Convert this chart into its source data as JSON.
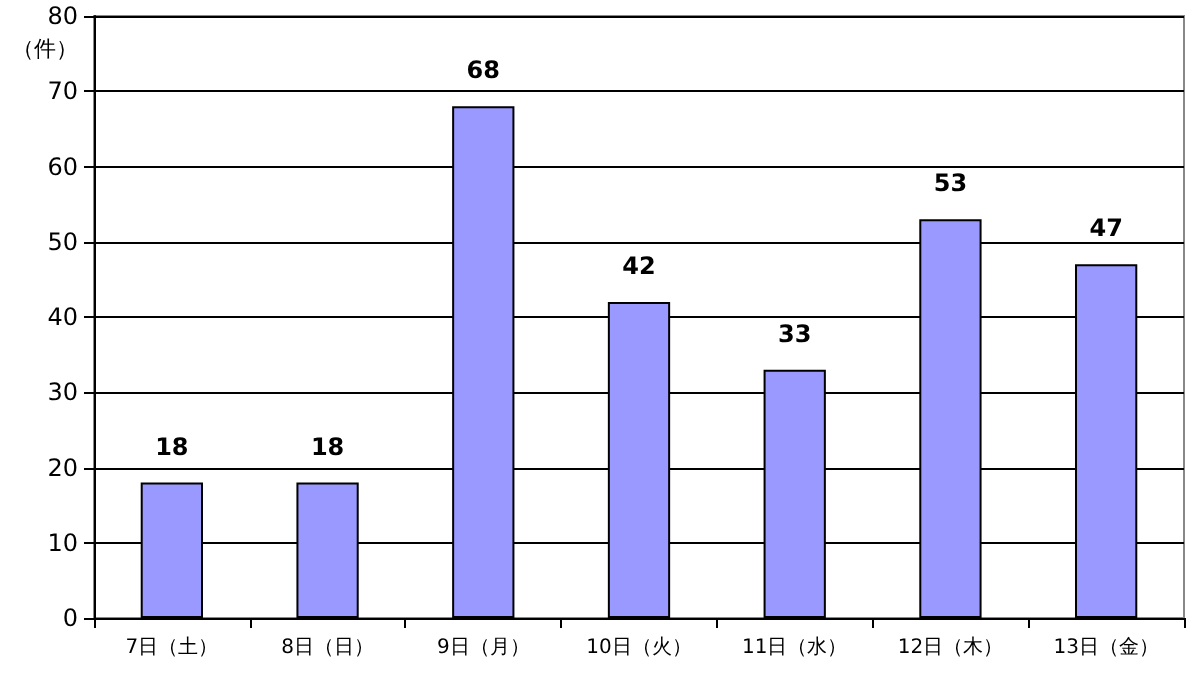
{
  "chart_data": {
    "type": "bar",
    "ylabel": "（件）",
    "categories": [
      "7日（土）",
      "8日（日）",
      "9日（月）",
      "10日（火）",
      "11日（水）",
      "12日（木）",
      "13日（金）"
    ],
    "values": [
      18,
      18,
      68,
      42,
      33,
      53,
      47
    ],
    "color": "#9999ff",
    "ylim": [
      0,
      80
    ],
    "yticks": [
      0,
      10,
      20,
      30,
      40,
      50,
      60,
      70,
      80
    ],
    "grid": "y",
    "data_labels": true
  }
}
